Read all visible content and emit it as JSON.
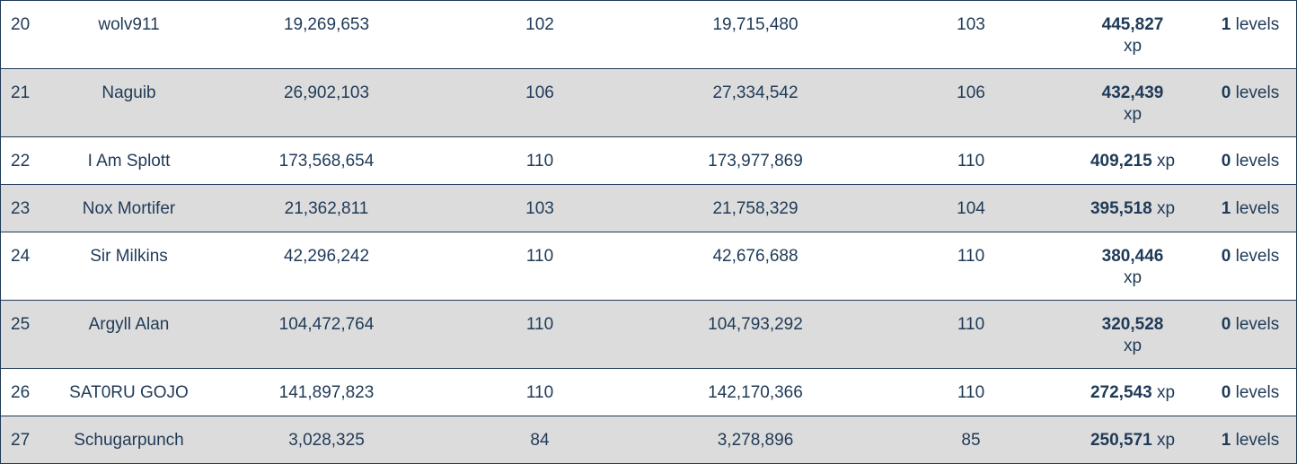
{
  "rows": [
    {
      "rank": "20",
      "name": "wolv911",
      "xp_start": "19,269,653",
      "level_start": "102",
      "xp_end": "19,715,480",
      "level_end": "103",
      "xp_gained": "445,827",
      "xp_unit": "xp",
      "levels_gained": "1",
      "levels_unit": "levels"
    },
    {
      "rank": "21",
      "name": "Naguib",
      "xp_start": "26,902,103",
      "level_start": "106",
      "xp_end": "27,334,542",
      "level_end": "106",
      "xp_gained": "432,439",
      "xp_unit": "xp",
      "levels_gained": "0",
      "levels_unit": "levels"
    },
    {
      "rank": "22",
      "name": "I Am Splott",
      "xp_start": "173,568,654",
      "level_start": "110",
      "xp_end": "173,977,869",
      "level_end": "110",
      "xp_gained": "409,215",
      "xp_unit": "xp",
      "levels_gained": "0",
      "levels_unit": "levels"
    },
    {
      "rank": "23",
      "name": "Nox Mortifer",
      "xp_start": "21,362,811",
      "level_start": "103",
      "xp_end": "21,758,329",
      "level_end": "104",
      "xp_gained": "395,518",
      "xp_unit": "xp",
      "levels_gained": "1",
      "levels_unit": "levels"
    },
    {
      "rank": "24",
      "name": "Sir Milkins",
      "xp_start": "42,296,242",
      "level_start": "110",
      "xp_end": "42,676,688",
      "level_end": "110",
      "xp_gained": "380,446",
      "xp_unit": "xp",
      "levels_gained": "0",
      "levels_unit": "levels"
    },
    {
      "rank": "25",
      "name": "Argyll Alan",
      "xp_start": "104,472,764",
      "level_start": "110",
      "xp_end": "104,793,292",
      "level_end": "110",
      "xp_gained": "320,528",
      "xp_unit": "xp",
      "levels_gained": "0",
      "levels_unit": "levels"
    },
    {
      "rank": "26",
      "name": "SAT0RU GOJO",
      "xp_start": "141,897,823",
      "level_start": "110",
      "xp_end": "142,170,366",
      "level_end": "110",
      "xp_gained": "272,543",
      "xp_unit": "xp",
      "levels_gained": "0",
      "levels_unit": "levels"
    },
    {
      "rank": "27",
      "name": "Schugarpunch",
      "xp_start": "3,028,325",
      "level_start": "84",
      "xp_end": "3,278,896",
      "level_end": "85",
      "xp_gained": "250,571",
      "xp_unit": "xp",
      "levels_gained": "1",
      "levels_unit": "levels"
    }
  ],
  "colors": {
    "text": "#1f3a57",
    "row_alt": "#dcdcdc",
    "row": "#ffffff",
    "border": "#1f3a57"
  }
}
